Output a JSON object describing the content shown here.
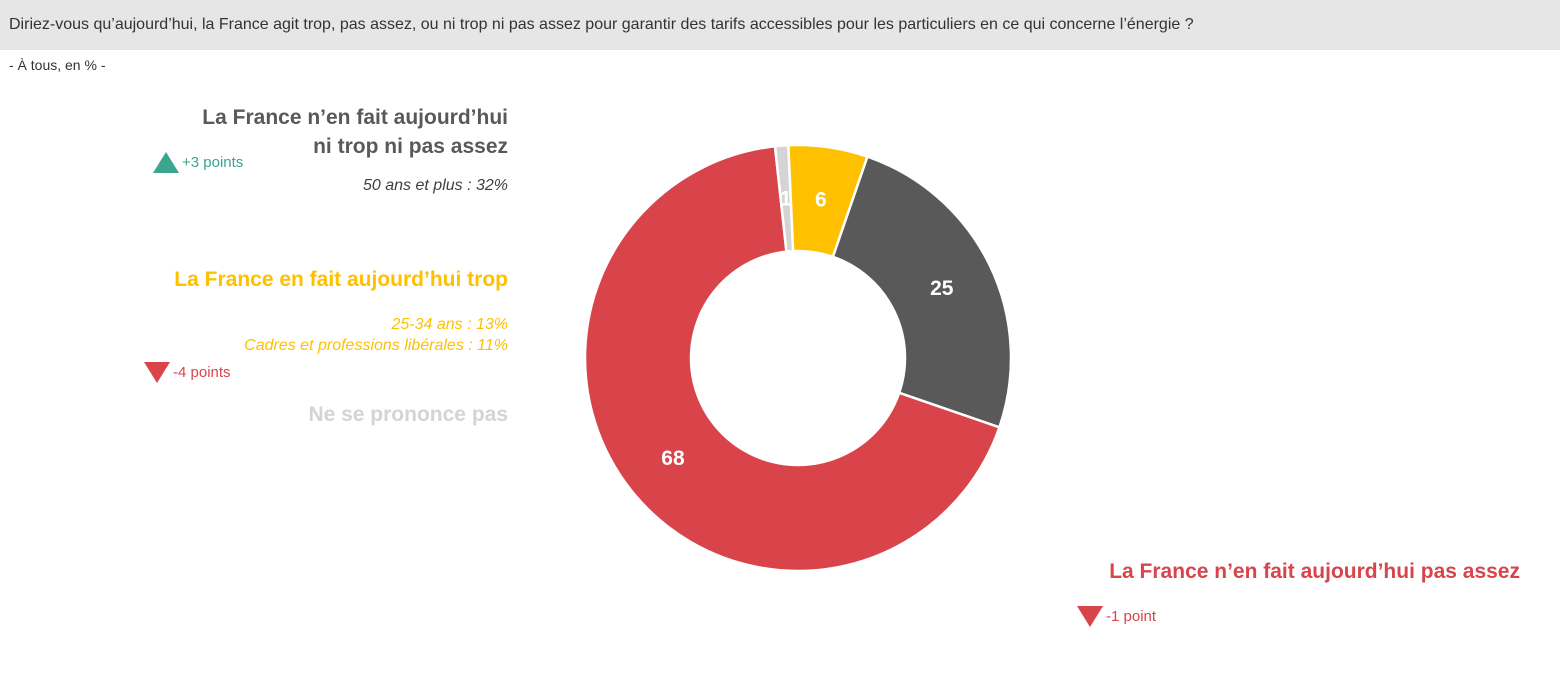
{
  "question": "Diriez-vous qu’aujourd’hui, la France agit trop, pas assez, ou ni trop ni pas assez pour garantir des tarifs accessibles pour les particuliers en ce qui concerne l’énergie ?",
  "base_note": "- À tous, en % -",
  "labels": {
    "ni_trop": {
      "title_line1": "La France n’en fait aujourd’hui",
      "title_line2": "ni trop ni pas assez",
      "trend": "+3 points",
      "detail1": "50 ans et plus : 32%",
      "color": "#595959"
    },
    "trop": {
      "title": "La France en fait aujourd’hui trop",
      "detail1": "25-34 ans : 13%",
      "detail2": "Cadres et professions libérales : 11%",
      "trend": "-4 points",
      "color": "#ffc000"
    },
    "nsp": {
      "title": "Ne se prononce pas",
      "color": "#d4d4d4"
    },
    "pas_assez": {
      "title": "La France n’en fait aujourd’hui pas assez",
      "trend": "-1 point",
      "color": "#d9444b"
    }
  },
  "colors": {
    "trend_up": "#3aa68e",
    "trend_down": "#d9444b"
  },
  "chart_data": {
    "type": "pie",
    "donut": true,
    "slices": [
      {
        "label": "La France n’en fait aujourd’hui ni trop ni pas assez",
        "value": 25,
        "color": "#595959"
      },
      {
        "label": "La France n’en fait aujourd’hui pas assez",
        "value": 68,
        "color": "#d9444b"
      },
      {
        "label": "Ne se prononce pas",
        "value": 1,
        "color": "#d4d4d4"
      },
      {
        "label": "La France en fait aujourd’hui trop",
        "value": 6,
        "color": "#ffc000"
      }
    ]
  }
}
